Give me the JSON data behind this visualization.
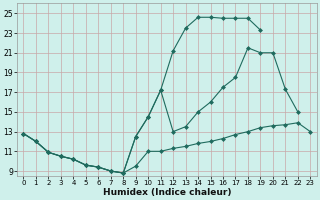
{
  "xlabel": "Humidex (Indice chaleur)",
  "bg_color": "#cff0eb",
  "grid_color": "#c8a8a8",
  "line_color": "#1f6b5e",
  "xlim": [
    -0.5,
    23.5
  ],
  "ylim": [
    8.5,
    26.0
  ],
  "xticks": [
    0,
    1,
    2,
    3,
    4,
    5,
    6,
    7,
    8,
    9,
    10,
    11,
    12,
    13,
    14,
    15,
    16,
    17,
    18,
    19,
    20,
    21,
    22,
    23
  ],
  "yticks": [
    9,
    11,
    13,
    15,
    17,
    19,
    21,
    23,
    25
  ],
  "line1_x": [
    0,
    1,
    2,
    3,
    4,
    5,
    6,
    7,
    8,
    9,
    10,
    11,
    12,
    13,
    14,
    15,
    16,
    17,
    18,
    19,
    20,
    21,
    22,
    23
  ],
  "line1_y": [
    12.8,
    12.0,
    10.9,
    10.5,
    10.2,
    9.6,
    9.4,
    9.0,
    8.8,
    9.5,
    11.0,
    11.0,
    11.3,
    11.5,
    11.8,
    12.0,
    12.3,
    12.7,
    13.0,
    13.4,
    13.6,
    13.7,
    13.9,
    13.0
  ],
  "line2_x": [
    0,
    1,
    2,
    3,
    4,
    5,
    6,
    7,
    8,
    9,
    10,
    11,
    12,
    13,
    14,
    15,
    16,
    17,
    18,
    19,
    20,
    21,
    22,
    23
  ],
  "line2_y": [
    12.8,
    12.0,
    10.9,
    10.5,
    10.2,
    9.6,
    9.4,
    9.0,
    8.8,
    12.5,
    14.5,
    17.2,
    21.2,
    23.5,
    24.6,
    24.6,
    24.5,
    24.5,
    24.5,
    23.3,
    null,
    null,
    null,
    null
  ],
  "line3_x": [
    0,
    1,
    2,
    3,
    4,
    5,
    6,
    7,
    8,
    9,
    10,
    11,
    12,
    13,
    14,
    15,
    16,
    17,
    18,
    19,
    20,
    21,
    22,
    23
  ],
  "line3_y": [
    12.8,
    12.0,
    10.9,
    10.5,
    10.2,
    9.6,
    9.4,
    9.0,
    8.8,
    12.5,
    14.5,
    17.2,
    13.0,
    13.5,
    15.0,
    16.0,
    17.5,
    18.5,
    21.5,
    21.0,
    21.0,
    17.3,
    15.0,
    null
  ]
}
